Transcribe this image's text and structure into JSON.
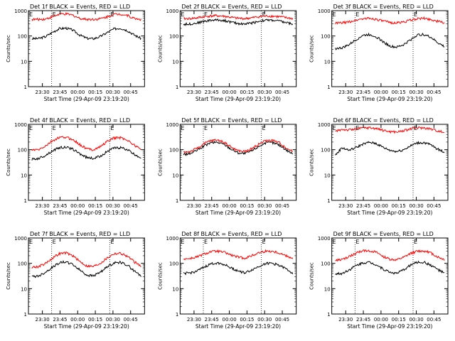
{
  "chart_data": [
    {
      "type": "line",
      "title": "Det 1f BLACK = Events, RED = LLD",
      "xlabel": "Start Time (29-Apr-09 23:19:20)",
      "ylabel": "Counts/sec",
      "yscale": "log",
      "ylim": [
        1,
        1000
      ],
      "xlim": [
        0,
        100
      ],
      "xticks": [
        "23:30",
        "23:45",
        "00:00",
        "00:15",
        "00:30",
        "00:45"
      ],
      "yticks": [
        "1",
        "10",
        "100",
        "1000"
      ],
      "marker": "E",
      "vlines": [
        20,
        70
      ],
      "series": [
        {
          "color": "#000000",
          "values": [
            78,
            80,
            95,
            140,
            195,
            205,
            170,
            110,
            82,
            78,
            95,
            135,
            190,
            205,
            165,
            110,
            80
          ]
        },
        {
          "color": "#ff0000",
          "values": [
            450,
            455,
            470,
            580,
            720,
            740,
            660,
            500,
            458,
            455,
            480,
            570,
            710,
            740,
            650,
            495,
            455
          ]
        }
      ]
    },
    {
      "type": "line",
      "title": "Det 2f BLACK = Events, RED = LLD",
      "xlabel": "Start Time (29-Apr-09 23:19:20)",
      "ylabel": "Counts/sec",
      "yscale": "log",
      "ylim": [
        1,
        1000
      ],
      "xlim": [
        0,
        100
      ],
      "xticks": [
        "23:30",
        "23:45",
        "00:00",
        "00:15",
        "00:30",
        "00:45"
      ],
      "yticks": [
        "1",
        "10",
        "100",
        "1000"
      ],
      "marker": "E",
      "vlines": [
        20,
        70
      ],
      "series": [
        {
          "color": "#000000",
          "values": [
            290,
            300,
            330,
            380,
            420,
            430,
            410,
            350,
            310,
            300,
            330,
            380,
            420,
            420,
            390,
            340,
            300
          ]
        },
        {
          "color": "#ff0000",
          "values": [
            480,
            490,
            520,
            580,
            620,
            630,
            600,
            540,
            500,
            490,
            520,
            580,
            610,
            610,
            580,
            530,
            490
          ]
        }
      ]
    },
    {
      "type": "line",
      "title": "Det 3f BLACK = Events, RED = LLD",
      "xlabel": "Start Time (29-Apr-09 23:19:20)",
      "ylabel": "Counts/sec",
      "yscale": "log",
      "ylim": [
        1,
        1000
      ],
      "xlim": [
        0,
        100
      ],
      "xticks": [
        "23:30",
        "23:45",
        "00:00",
        "00:15",
        "00:30",
        "00:45"
      ],
      "yticks": [
        "1",
        "10",
        "100",
        "1000"
      ],
      "marker": "E",
      "vlines": [
        20,
        70
      ],
      "series": [
        {
          "color": "#000000",
          "values": [
            32,
            34,
            45,
            70,
            105,
            115,
            95,
            60,
            40,
            36,
            45,
            70,
            110,
            115,
            90,
            55,
            38
          ]
        },
        {
          "color": "#ff0000",
          "values": [
            320,
            330,
            360,
            420,
            480,
            500,
            460,
            390,
            340,
            330,
            360,
            420,
            480,
            500,
            450,
            380,
            335
          ]
        }
      ]
    },
    {
      "type": "line",
      "title": "Det 4f BLACK = Events, RED = LLD",
      "xlabel": "Start Time (29-Apr-09 23:19:20)",
      "ylabel": "Counts/sec",
      "yscale": "log",
      "ylim": [
        1,
        1000
      ],
      "xlim": [
        0,
        100
      ],
      "xticks": [
        "23:30",
        "23:45",
        "00:00",
        "00:15",
        "00:30",
        "00:45"
      ],
      "yticks": [
        "1",
        "10",
        "100",
        "1000"
      ],
      "marker": "E",
      "vlines": [
        20,
        70
      ],
      "series": [
        {
          "color": "#000000",
          "values": [
            42,
            45,
            60,
            90,
            120,
            125,
            105,
            70,
            50,
            45,
            55,
            85,
            115,
            120,
            100,
            65,
            48
          ]
        },
        {
          "color": "#ff0000",
          "values": [
            95,
            100,
            140,
            220,
            300,
            310,
            250,
            160,
            110,
            100,
            130,
            210,
            290,
            300,
            240,
            150,
            105
          ]
        }
      ]
    },
    {
      "type": "line",
      "title": "Det 5f BLACK = Events, RED = LLD",
      "xlabel": "Start Time (29-Apr-09 23:19:20)",
      "ylabel": "Counts/sec",
      "yscale": "log",
      "ylim": [
        1,
        1000
      ],
      "xlim": [
        0,
        100
      ],
      "xticks": [
        "23:30",
        "23:45",
        "00:00",
        "00:15",
        "00:30",
        "00:45"
      ],
      "yticks": [
        "1",
        "10",
        "100",
        "1000"
      ],
      "marker": "E",
      "vlines": [
        20,
        70
      ],
      "series": [
        {
          "color": "#000000",
          "values": [
            65,
            70,
            95,
            140,
            190,
            195,
            160,
            105,
            75,
            70,
            90,
            135,
            185,
            190,
            155,
            100,
            70
          ]
        },
        {
          "color": "#ff0000",
          "values": [
            80,
            85,
            115,
            170,
            230,
            240,
            195,
            125,
            90,
            85,
            110,
            165,
            225,
            235,
            190,
            120,
            85
          ]
        }
      ]
    },
    {
      "type": "line",
      "title": "Det 6f BLACK = Events, RED = LLD",
      "xlabel": "Start Time (29-Apr-09 23:19:20)",
      "ylabel": "Counts/sec",
      "yscale": "log",
      "ylim": [
        1,
        1000
      ],
      "xlim": [
        0,
        100
      ],
      "xticks": [
        "23:30",
        "23:45",
        "00:00",
        "00:15",
        "00:30",
        "00:45"
      ],
      "yticks": [
        "1",
        "10",
        "100",
        "1000"
      ],
      "marker": "E",
      "vlines": [
        20,
        70
      ],
      "series": [
        {
          "color": "#000000",
          "values": [
            60,
            120,
            95,
            120,
            165,
            195,
            175,
            125,
            95,
            85,
            100,
            140,
            185,
            190,
            155,
            105,
            80
          ]
        },
        {
          "color": "#ff0000",
          "values": [
            520,
            640,
            600,
            650,
            720,
            740,
            690,
            580,
            520,
            500,
            560,
            660,
            730,
            730,
            660,
            560,
            480
          ]
        }
      ]
    },
    {
      "type": "line",
      "title": "Det 7f BLACK = Events, RED = LLD",
      "xlabel": "Start Time (29-Apr-09 23:19:20)",
      "ylabel": "Counts/sec",
      "yscale": "log",
      "ylim": [
        1,
        1000
      ],
      "xlim": [
        0,
        100
      ],
      "xticks": [
        "23:30",
        "23:45",
        "00:00",
        "00:15",
        "00:30",
        "00:45"
      ],
      "yticks": [
        "1",
        "10",
        "100",
        "1000"
      ],
      "marker": "E",
      "vlines": [
        20,
        70
      ],
      "series": [
        {
          "color": "#000000",
          "values": [
            30,
            32,
            45,
            70,
            105,
            115,
            90,
            55,
            35,
            32,
            45,
            70,
            105,
            110,
            85,
            50,
            32
          ]
        },
        {
          "color": "#ff0000",
          "values": [
            70,
            75,
            100,
            160,
            240,
            260,
            200,
            120,
            80,
            75,
            100,
            160,
            240,
            250,
            190,
            115,
            75
          ]
        }
      ]
    },
    {
      "type": "line",
      "title": "Det 8f BLACK = Events, RED = LLD",
      "xlabel": "Start Time (29-Apr-09 23:19:20)",
      "ylabel": "Counts/sec",
      "yscale": "log",
      "ylim": [
        1,
        1000
      ],
      "xlim": [
        0,
        100
      ],
      "xticks": [
        "23:30",
        "23:45",
        "00:00",
        "00:15",
        "00:30",
        "00:45"
      ],
      "yticks": [
        "1",
        "10",
        "100",
        "1000"
      ],
      "marker": "E",
      "vlines": [
        20,
        70
      ],
      "series": [
        {
          "color": "#000000",
          "values": [
            40,
            42,
            50,
            70,
            95,
            105,
            90,
            65,
            50,
            42,
            55,
            75,
            100,
            100,
            85,
            60,
            42
          ]
        },
        {
          "color": "#ff0000",
          "values": [
            150,
            155,
            180,
            230,
            290,
            300,
            270,
            210,
            175,
            160,
            200,
            260,
            300,
            300,
            260,
            200,
            160
          ]
        }
      ]
    },
    {
      "type": "line",
      "title": "Det 9f BLACK = Events, RED = LLD",
      "xlabel": "Start Time (29-Apr-09 23:19:20)",
      "ylabel": "Counts/sec",
      "yscale": "log",
      "ylim": [
        1,
        1000
      ],
      "xlim": [
        0,
        100
      ],
      "xticks": [
        "23:30",
        "23:45",
        "00:00",
        "00:15",
        "00:30",
        "00:45"
      ],
      "yticks": [
        "1",
        "10",
        "100",
        "1000"
      ],
      "marker": "E",
      "vlines": [
        20,
        70
      ],
      "series": [
        {
          "color": "#000000",
          "values": [
            38,
            40,
            55,
            80,
            105,
            110,
            90,
            60,
            45,
            40,
            55,
            85,
            110,
            110,
            85,
            58,
            40
          ]
        },
        {
          "color": "#ff0000",
          "values": [
            130,
            140,
            180,
            250,
            310,
            320,
            270,
            190,
            145,
            135,
            170,
            240,
            300,
            310,
            260,
            180,
            140
          ]
        }
      ]
    }
  ]
}
